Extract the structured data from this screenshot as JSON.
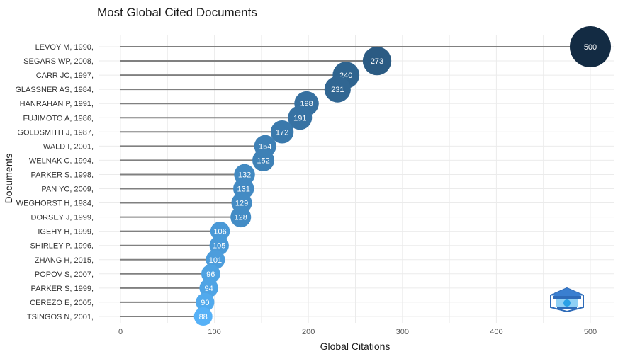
{
  "chart_data": {
    "type": "scatter",
    "title": "Most Global Cited Documents",
    "xlabel": "Global Citations",
    "ylabel": "Documents",
    "xlim": [
      0,
      520
    ],
    "xticks": [
      0,
      100,
      200,
      300,
      400,
      500
    ],
    "grid": true,
    "categories": [
      "LEVOY M, 1990,",
      "SEGARS WP, 2008,",
      "CARR JC, 1997,",
      "GLASSNER AS, 1984,",
      "HANRAHAN P, 1991,",
      "FUJIMOTO A, 1986,",
      "GOLDSMITH J, 1987,",
      "WALD I, 2001,",
      "WELNAK C, 1994,",
      "PARKER S, 1998,",
      "PAN YC, 2009,",
      "WEGHORST H, 1984,",
      "DORSEY J, 1999,",
      "IGEHY H, 1999,",
      "SHIRLEY P, 1996,",
      "ZHANG H, 2015,",
      "POPOV S, 2007,",
      "PARKER S, 1999,",
      "CEREZO E, 2005,",
      "TSINGOS N, 2001,"
    ],
    "values": [
      500,
      273,
      240,
      231,
      198,
      191,
      172,
      154,
      152,
      132,
      131,
      129,
      128,
      106,
      105,
      101,
      96,
      94,
      90,
      88
    ],
    "color_low": "#56B1F7",
    "color_high": "#132B43",
    "stem_color": "#808080"
  },
  "logo": {
    "name": "bibliometrix-logo"
  }
}
